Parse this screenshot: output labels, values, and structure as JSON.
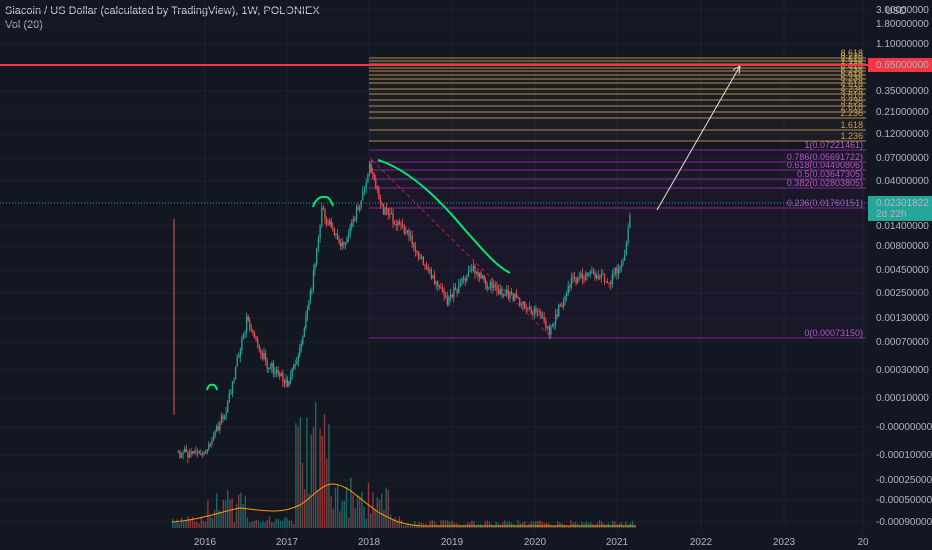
{
  "header": {
    "title": "Siacoin / US Dollar (calculated by TradingView), 1W, POLONIEX",
    "volume": "Vol (20)"
  },
  "price_axis": {
    "ticks": [
      "3.00000000",
      "1.80000000",
      "1.10000000",
      "0.35000000",
      "0.21000000",
      "0.12000000",
      "0.07000000",
      "0.04000000",
      "0.01400000",
      "0.00800000",
      "0.00450000",
      "0.00250000",
      "0.00130000",
      "0.00070000",
      "0.00030000",
      "0.00010000",
      "-0.00000000",
      "-0.00010000",
      "-0.00025000",
      "-0.00050000",
      "-0.00090000"
    ],
    "currency": "USD",
    "current_price": "0.02301822",
    "countdown": "2d 22h",
    "red_level": "0.65000000"
  },
  "time_axis": {
    "labels": [
      "2016",
      "2017",
      "2018",
      "2019",
      "2020",
      "2021",
      "2022",
      "2023",
      "20"
    ]
  },
  "fib": {
    "levels": [
      "0(0.00073150)",
      "0.236(0.01760151)",
      "0.382(0.02803805)",
      "0.5(0.03647305)",
      "0.618(0.04490806)",
      "0.786(0.05691722)",
      "1(0.07221461)",
      "1.236",
      "1.618",
      "2.236",
      "2.618",
      "3.236",
      "3.618",
      "4.236",
      "4.618",
      "5.236",
      "5.618",
      "6.236",
      "6.618",
      "7.236",
      "7.618",
      "8.236",
      "8.618"
    ]
  },
  "colors": {
    "background": "#131722",
    "red_line": "#f23645",
    "current_price": "#26a69a",
    "fib_purple": "#9c27b0",
    "fib_orange": "#c8a052",
    "arc_green": "#00e676",
    "candle_up": "#26a69a",
    "candle_down": "#ef5350",
    "volume_ma": "#ff9800"
  },
  "chart_data": {
    "type": "candlestick",
    "title": "Siacoin / US Dollar (calculated by TradingView), 1W, POLONIEX",
    "y_scale": "log",
    "x": [
      "2015-09",
      "2016-01",
      "2016-04",
      "2016-07",
      "2016-10",
      "2017-01",
      "2017-03",
      "2017-05",
      "2017-06",
      "2017-09",
      "2017-12",
      "2018-01",
      "2018-03",
      "2018-06",
      "2018-09",
      "2018-12",
      "2019-04",
      "2019-06",
      "2019-10",
      "2020-02",
      "2020-03",
      "2020-06",
      "2020-09",
      "2020-12",
      "2021-02",
      "2021-03"
    ],
    "close": [
      4e-05,
      4e-05,
      0.00012,
      0.0012,
      0.0004,
      0.00025,
      0.0006,
      0.005,
      0.02,
      0.008,
      0.028,
      0.055,
      0.02,
      0.013,
      0.005,
      0.002,
      0.0045,
      0.0031,
      0.0022,
      0.0013,
      0.0009,
      0.0032,
      0.004,
      0.0035,
      0.006,
      0.023
    ],
    "fib_retracement": {
      "from": 0.0007315,
      "to": 0.07221461
    },
    "horizontal_level": 0.65
  }
}
